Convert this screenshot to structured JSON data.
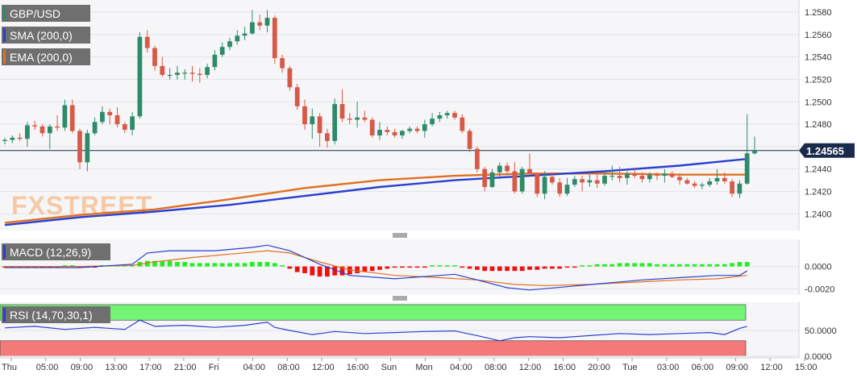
{
  "colors": {
    "background": "#f6f6f8",
    "grid": "#e2e4ea",
    "bull": "#2e8b6a",
    "bear": "#d65a48",
    "sma": "#2a3fd0",
    "ema": "#e07020",
    "price_line": "#1a2a4a",
    "legend_bg": "#6f6f6f",
    "macd_pos": "#22ee22",
    "macd_neg": "#ee1111",
    "rsi_upper_band": "#74f474",
    "rsi_lower_band": "#f47a7a",
    "watermark": "#f6c8a6"
  },
  "watermark": "FXSTREET",
  "main_chart": {
    "symbol": "GBP/USD",
    "legend": [
      "SMA (200,0)",
      "EMA (200,0)"
    ],
    "last_price_label": "1.24565"
  },
  "macd_panel": {
    "label": "MACD (12,26,9)",
    "ticks": [
      "0.0000",
      "-0.0020"
    ]
  },
  "rsi_panel": {
    "label": "RSI (14,70,30,1)",
    "ticks": [
      "50.0000",
      "0.0000"
    ]
  },
  "x_labels": [
    "Thu",
    "05:00",
    "09:00",
    "13:00",
    "17:00",
    "21:00",
    "Fri",
    "04:00",
    "08:00",
    "12:00",
    "16:00",
    "Sun",
    "Mon",
    "04:00",
    "08:00",
    "12:00",
    "16:00",
    "20:00",
    "Tue",
    "03:00",
    "06:00",
    "09:00",
    "12:00",
    "15:00"
  ],
  "chart_data": [
    {
      "type": "candlestick",
      "title": "GBP/USD",
      "ylim": [
        1.2388,
        1.2588
      ],
      "y_ticks": [
        "1.2580",
        "1.2560",
        "1.2540",
        "1.2520",
        "1.2500",
        "1.2480",
        "1.2460",
        "1.2440",
        "1.2420",
        "1.2400"
      ],
      "last_price": 1.24565,
      "candles": [
        [
          1.2465,
          1.2468,
          1.2462,
          1.2466
        ],
        [
          1.2466,
          1.247,
          1.2463,
          1.2468
        ],
        [
          1.2468,
          1.2472,
          1.2465,
          1.2467
        ],
        [
          1.2467,
          1.2482,
          1.246,
          1.2479
        ],
        [
          1.2479,
          1.2483,
          1.2475,
          1.2478
        ],
        [
          1.2478,
          1.248,
          1.2469,
          1.2472
        ],
        [
          1.2472,
          1.248,
          1.2458,
          1.2478
        ],
        [
          1.2478,
          1.2488,
          1.2474,
          1.2477
        ],
        [
          1.2477,
          1.2502,
          1.2474,
          1.2497
        ],
        [
          1.2497,
          1.2502,
          1.2472,
          1.2474
        ],
        [
          1.2474,
          1.2476,
          1.244,
          1.2446
        ],
        [
          1.2446,
          1.2475,
          1.2438,
          1.2472
        ],
        [
          1.2472,
          1.2486,
          1.247,
          1.2482
        ],
        [
          1.2482,
          1.2496,
          1.248,
          1.2491
        ],
        [
          1.2491,
          1.2494,
          1.248,
          1.2488
        ],
        [
          1.2488,
          1.2495,
          1.2477,
          1.248
        ],
        [
          1.248,
          1.2482,
          1.2472,
          1.2475
        ],
        [
          1.2475,
          1.2491,
          1.247,
          1.2487
        ],
        [
          1.2487,
          1.2562,
          1.2485,
          1.2558
        ],
        [
          1.2558,
          1.2564,
          1.2544,
          1.2548
        ],
        [
          1.2548,
          1.255,
          1.2528,
          1.2532
        ],
        [
          1.2532,
          1.254,
          1.2522,
          1.2524
        ],
        [
          1.2524,
          1.253,
          1.252,
          1.2524
        ],
        [
          1.2524,
          1.2532,
          1.252,
          1.2526
        ],
        [
          1.2526,
          1.2529,
          1.252,
          1.2526
        ],
        [
          1.2526,
          1.2532,
          1.2518,
          1.2525
        ],
        [
          1.2525,
          1.253,
          1.2517,
          1.2524
        ],
        [
          1.2524,
          1.2534,
          1.2521,
          1.2531
        ],
        [
          1.2531,
          1.2546,
          1.2528,
          1.2542
        ],
        [
          1.2542,
          1.2553,
          1.254,
          1.2549
        ],
        [
          1.2549,
          1.2557,
          1.2546,
          1.2554
        ],
        [
          1.2554,
          1.2564,
          1.2551,
          1.2559
        ],
        [
          1.2559,
          1.2567,
          1.2555,
          1.2561
        ],
        [
          1.2561,
          1.2582,
          1.256,
          1.2571
        ],
        [
          1.2571,
          1.2578,
          1.2564,
          1.2568
        ],
        [
          1.2568,
          1.2582,
          1.2562,
          1.2575
        ],
        [
          1.2575,
          1.2577,
          1.2534,
          1.2539
        ],
        [
          1.2539,
          1.2542,
          1.2526,
          1.253
        ],
        [
          1.253,
          1.2532,
          1.251,
          1.2513
        ],
        [
          1.2513,
          1.2516,
          1.2493,
          1.2496
        ],
        [
          1.2496,
          1.2502,
          1.2475,
          1.248
        ],
        [
          1.248,
          1.2494,
          1.2467,
          1.2487
        ],
        [
          1.2487,
          1.249,
          1.246,
          1.2472
        ],
        [
          1.2472,
          1.2476,
          1.2459,
          1.2465
        ],
        [
          1.2465,
          1.2503,
          1.2462,
          1.2498
        ],
        [
          1.2498,
          1.2511,
          1.2482,
          1.2485
        ],
        [
          1.2485,
          1.249,
          1.248,
          1.2484
        ],
        [
          1.2484,
          1.25,
          1.2477,
          1.2486
        ],
        [
          1.2486,
          1.2492,
          1.2482,
          1.2484
        ],
        [
          1.2484,
          1.2486,
          1.2468,
          1.247
        ],
        [
          1.247,
          1.2482,
          1.2466,
          1.2475
        ],
        [
          1.2475,
          1.2478,
          1.247,
          1.2473
        ],
        [
          1.2473,
          1.2476,
          1.2468,
          1.247
        ],
        [
          1.247,
          1.2475,
          1.2467,
          1.2474
        ],
        [
          1.2474,
          1.2478,
          1.2472,
          1.2476
        ],
        [
          1.2476,
          1.2478,
          1.2472,
          1.2474
        ],
        [
          1.2474,
          1.2484,
          1.2468,
          1.248
        ],
        [
          1.248,
          1.249,
          1.2478,
          1.2485
        ],
        [
          1.2485,
          1.2491,
          1.2482,
          1.2488
        ],
        [
          1.2488,
          1.2492,
          1.2485,
          1.249
        ],
        [
          1.249,
          1.2492,
          1.2484,
          1.2486
        ],
        [
          1.2486,
          1.2489,
          1.2472,
          1.2474
        ],
        [
          1.2474,
          1.2476,
          1.2455,
          1.2458
        ],
        [
          1.2458,
          1.246,
          1.2437,
          1.244
        ],
        [
          1.244,
          1.2442,
          1.242,
          1.2424
        ],
        [
          1.2424,
          1.244,
          1.2423,
          1.2437
        ],
        [
          1.2437,
          1.2446,
          1.2431,
          1.2443
        ],
        [
          1.2443,
          1.2446,
          1.2436,
          1.2438
        ],
        [
          1.2438,
          1.2446,
          1.2418,
          1.242
        ],
        [
          1.242,
          1.2442,
          1.2418,
          1.244
        ],
        [
          1.244,
          1.2454,
          1.2436,
          1.2436
        ],
        [
          1.2436,
          1.2436,
          1.2415,
          1.2418
        ],
        [
          1.2418,
          1.2438,
          1.2413,
          1.2433
        ],
        [
          1.2433,
          1.2436,
          1.2426,
          1.2428
        ],
        [
          1.2428,
          1.2432,
          1.2415,
          1.2418
        ],
        [
          1.2418,
          1.2432,
          1.2416,
          1.2426
        ],
        [
          1.2426,
          1.2434,
          1.2424,
          1.2431
        ],
        [
          1.2431,
          1.2434,
          1.242,
          1.2428
        ],
        [
          1.2428,
          1.2435,
          1.2424,
          1.243
        ],
        [
          1.243,
          1.2436,
          1.2423,
          1.2427
        ],
        [
          1.2427,
          1.2437,
          1.2425,
          1.2434
        ],
        [
          1.2434,
          1.2443,
          1.243,
          1.2434
        ],
        [
          1.2434,
          1.2442,
          1.2428,
          1.2432
        ],
        [
          1.2432,
          1.2438,
          1.2426,
          1.2436
        ],
        [
          1.2436,
          1.244,
          1.2432,
          1.2434
        ],
        [
          1.2434,
          1.2437,
          1.2428,
          1.2431
        ],
        [
          1.2431,
          1.2437,
          1.2428,
          1.2435
        ],
        [
          1.2435,
          1.2437,
          1.243,
          1.2434
        ],
        [
          1.2434,
          1.244,
          1.2428,
          1.2436
        ],
        [
          1.2436,
          1.2438,
          1.2432,
          1.2433
        ],
        [
          1.2433,
          1.2436,
          1.2426,
          1.243
        ],
        [
          1.243,
          1.2432,
          1.2426,
          1.2427
        ],
        [
          1.2427,
          1.2429,
          1.2423,
          1.2425
        ],
        [
          1.2425,
          1.2428,
          1.2422,
          1.2426
        ],
        [
          1.2426,
          1.2432,
          1.2424,
          1.2429
        ],
        [
          1.2429,
          1.244,
          1.2426,
          1.2432
        ],
        [
          1.2432,
          1.2437,
          1.2427,
          1.2429
        ],
        [
          1.2429,
          1.2431,
          1.2415,
          1.2418
        ],
        [
          1.2418,
          1.243,
          1.2414,
          1.2427
        ],
        [
          1.2427,
          1.2489,
          1.2426,
          1.2454
        ],
        [
          1.2454,
          1.2469,
          1.2453,
          1.24565
        ]
      ],
      "sma_200": [
        [
          0,
          1.239
        ],
        [
          10,
          1.2397
        ],
        [
          20,
          1.2402
        ],
        [
          30,
          1.2408
        ],
        [
          40,
          1.2416
        ],
        [
          50,
          1.2424
        ],
        [
          60,
          1.243
        ],
        [
          70,
          1.2434
        ],
        [
          80,
          1.2438
        ],
        [
          90,
          1.2443
        ],
        [
          99,
          1.2449
        ]
      ],
      "ema_200": [
        [
          0,
          1.2392
        ],
        [
          10,
          1.2399
        ],
        [
          20,
          1.2404
        ],
        [
          30,
          1.2413
        ],
        [
          40,
          1.2423
        ],
        [
          50,
          1.243
        ],
        [
          60,
          1.2434
        ],
        [
          70,
          1.2436
        ],
        [
          80,
          1.2436
        ],
        [
          90,
          1.2435
        ],
        [
          99,
          1.2435
        ]
      ]
    },
    {
      "type": "bar",
      "title": "MACD (12,26,9)",
      "ylim": [
        -0.0024,
        0.0022
      ],
      "histogram": [
        -0.0001,
        -0.0001,
        -0.0001,
        -0.0001,
        -0.0001,
        -0.0001,
        -0.0001,
        -0.0001,
        0.0,
        0.0,
        -0.0001,
        -0.0001,
        -0.0001,
        0.0,
        0.0,
        0.0,
        0.0001,
        0.0001,
        0.0004,
        0.0005,
        0.0005,
        0.0005,
        0.0005,
        0.0004,
        0.0004,
        0.0003,
        0.0003,
        0.0003,
        0.0003,
        0.0003,
        0.0003,
        0.0003,
        0.0003,
        0.0004,
        0.0004,
        0.0004,
        0.0003,
        0.0001,
        -0.0002,
        -0.0005,
        -0.0006,
        -0.0008,
        -0.0009,
        -0.0009,
        -0.0008,
        -0.0008,
        -0.0007,
        -0.0006,
        -0.0005,
        -0.0004,
        -0.0003,
        -0.0002,
        -0.0001,
        -0.0001,
        -0.0001,
        -0.0001,
        -0.0001,
        0.0,
        0.0,
        0.0,
        0.0,
        -0.0001,
        -0.0002,
        -0.0003,
        -0.0004,
        -0.0004,
        -0.0004,
        -0.0004,
        -0.0004,
        -0.0004,
        -0.0003,
        -0.0003,
        -0.0002,
        -0.0002,
        -0.0002,
        -0.0001,
        -0.0001,
        0.0,
        0.0001,
        0.0002,
        0.0002,
        0.0002,
        0.0003,
        0.0003,
        0.0003,
        0.0003,
        0.0003,
        0.0002,
        0.0002,
        0.0002,
        0.0002,
        0.0002,
        0.0002,
        0.0002,
        0.0002,
        0.0002,
        0.0002,
        0.0003,
        0.0004,
        0.0004
      ],
      "macd_line": [
        [
          0,
          -0.0001
        ],
        [
          10,
          -0.0001
        ],
        [
          17,
          0.0002
        ],
        [
          19,
          0.0012
        ],
        [
          22,
          0.0014
        ],
        [
          28,
          0.0014
        ],
        [
          33,
          0.0017
        ],
        [
          35,
          0.0019
        ],
        [
          38,
          0.0014
        ],
        [
          42,
          0.0002
        ],
        [
          46,
          -0.0008
        ],
        [
          52,
          -0.0011
        ],
        [
          58,
          -0.0008
        ],
        [
          60,
          -0.0007
        ],
        [
          63,
          -0.0012
        ],
        [
          67,
          -0.0019
        ],
        [
          70,
          -0.0021
        ],
        [
          75,
          -0.0018
        ],
        [
          80,
          -0.0015
        ],
        [
          85,
          -0.0012
        ],
        [
          90,
          -0.001
        ],
        [
          95,
          -0.0008
        ],
        [
          98,
          -0.0008
        ],
        [
          99,
          -0.0004
        ]
      ],
      "signal_line": [
        [
          0,
          0.0
        ],
        [
          10,
          0.0
        ],
        [
          17,
          0.0001
        ],
        [
          20,
          0.0004
        ],
        [
          25,
          0.0008
        ],
        [
          30,
          0.0011
        ],
        [
          35,
          0.0014
        ],
        [
          38,
          0.0012
        ],
        [
          42,
          0.0004
        ],
        [
          46,
          -0.0003
        ],
        [
          52,
          -0.0008
        ],
        [
          58,
          -0.001
        ],
        [
          63,
          -0.0012
        ],
        [
          68,
          -0.0016
        ],
        [
          72,
          -0.0017
        ],
        [
          78,
          -0.0016
        ],
        [
          84,
          -0.0014
        ],
        [
          90,
          -0.0012
        ],
        [
          95,
          -0.0011
        ],
        [
          99,
          -0.0008
        ]
      ]
    },
    {
      "type": "line",
      "title": "RSI (14,70,30,1)",
      "ylim": [
        0,
        100
      ],
      "upper_band": 70,
      "lower_band": 30,
      "rsi": [
        [
          0,
          55
        ],
        [
          4,
          58
        ],
        [
          8,
          52
        ],
        [
          12,
          56
        ],
        [
          16,
          52
        ],
        [
          18,
          70
        ],
        [
          20,
          58
        ],
        [
          24,
          60
        ],
        [
          28,
          56
        ],
        [
          32,
          60
        ],
        [
          35,
          66
        ],
        [
          36,
          56
        ],
        [
          38,
          50
        ],
        [
          41,
          42
        ],
        [
          44,
          48
        ],
        [
          48,
          44
        ],
        [
          52,
          46
        ],
        [
          56,
          48
        ],
        [
          60,
          49
        ],
        [
          63,
          40
        ],
        [
          66,
          30
        ],
        [
          68,
          36
        ],
        [
          70,
          38
        ],
        [
          74,
          36
        ],
        [
          78,
          40
        ],
        [
          82,
          44
        ],
        [
          86,
          42
        ],
        [
          90,
          44
        ],
        [
          94,
          46
        ],
        [
          96,
          42
        ],
        [
          98,
          54
        ],
        [
          99,
          58
        ]
      ]
    }
  ]
}
